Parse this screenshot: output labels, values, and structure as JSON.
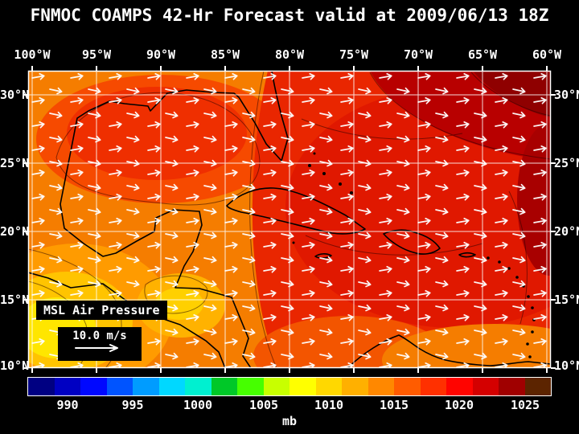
{
  "header": {
    "title": "FNMOC COAMPS 42-Hr Forecast valid at 2009/06/13 18Z"
  },
  "axes": {
    "lon_labels": [
      "100°W",
      "95°W",
      "90°W",
      "85°W",
      "80°W",
      "75°W",
      "70°W",
      "65°W",
      "60°W"
    ],
    "lat_labels": [
      "30°N",
      "25°N",
      "20°N",
      "15°N",
      "10°N"
    ]
  },
  "legend": {
    "field_label": "MSL Air Pressure",
    "wind_scale_label": "10.0 m/s"
  },
  "colorbar": {
    "unit_label": "mb",
    "tick_labels": [
      "990",
      "995",
      "1000",
      "1005",
      "1010",
      "1015",
      "1020",
      "1025"
    ],
    "range_mb": [
      987,
      1027
    ],
    "segment_colors": [
      "#000082",
      "#0000c3",
      "#0008ff",
      "#0054ff",
      "#009cff",
      "#00d8ff",
      "#00f0d0",
      "#00c828",
      "#46ff00",
      "#c8ff00",
      "#ffff00",
      "#ffd800",
      "#ffb000",
      "#ff8800",
      "#ff5c00",
      "#ff3000",
      "#ff0400",
      "#d40000",
      "#a00000",
      "#5c2400"
    ]
  },
  "colors": {
    "background": "#000000",
    "text": "#ffffff",
    "grid": "#ffffff",
    "coastline": "#000000",
    "wind_vectors": "#ffffff",
    "pressure_low_fill": "#ffe600",
    "pressure_mid_fill": "#f57d00",
    "pressure_high_fill": "#8f0000"
  },
  "chart_data": {
    "type": "heatmap",
    "title": "FNMOC COAMPS 42-Hr Forecast valid at 2009/06/13 18Z",
    "field": "MSL Air Pressure",
    "unit": "mb",
    "colorbar_ticks_mb": [
      990,
      995,
      1000,
      1005,
      1010,
      1015,
      1020,
      1025
    ],
    "colorbar_range_mb": [
      987,
      1027
    ],
    "lon_ticks": [
      "100°W",
      "95°W",
      "90°W",
      "85°W",
      "80°W",
      "75°W",
      "70°W",
      "65°W",
      "60°W"
    ],
    "lat_ticks": [
      "30°N",
      "25°N",
      "20°N",
      "15°N",
      "10°N"
    ],
    "wind_reference_vector": "10.0 m/s",
    "legend_position": "bottom",
    "grid": "on"
  }
}
